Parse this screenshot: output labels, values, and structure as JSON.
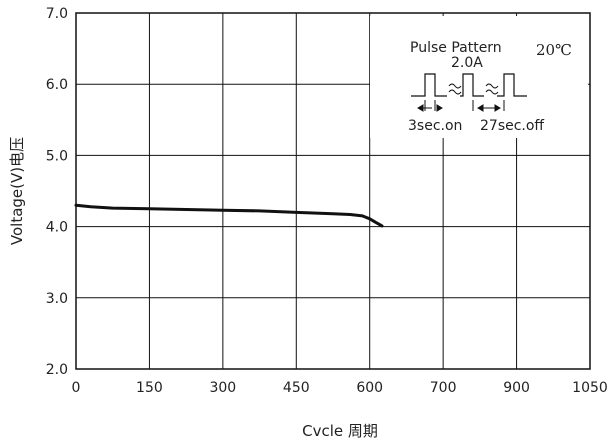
{
  "chart_data": {
    "type": "line",
    "title": "",
    "xlabel": "Cvcle 周期",
    "ylabel": "Voltage(V)电压",
    "x_tick_labels": [
      "0",
      "150",
      "300",
      "450",
      "600",
      "700",
      "900",
      "1050"
    ],
    "y_ticks": [
      2.0,
      3.0,
      4.0,
      5.0,
      6.0,
      7.0
    ],
    "y_tick_labels": [
      "2.0",
      "3.0",
      "4.0",
      "5.0",
      "6.0",
      "7.0"
    ],
    "ylim": [
      2.0,
      7.0
    ],
    "grid": true,
    "series": [
      {
        "x": [
          0,
          30,
          75,
          150,
          225,
          300,
          375,
          450,
          525,
          560,
          585,
          600,
          612,
          625
        ],
        "y": [
          4.3,
          4.28,
          4.26,
          4.25,
          4.24,
          4.23,
          4.22,
          4.2,
          4.18,
          4.17,
          4.15,
          4.11,
          4.06,
          4.01
        ]
      }
    ],
    "inset": {
      "title_line": "Pulse  Pattern",
      "current": "2.0A",
      "temperature": "20℃",
      "on_label": "3sec.on",
      "off_label": "27sec.off"
    }
  }
}
